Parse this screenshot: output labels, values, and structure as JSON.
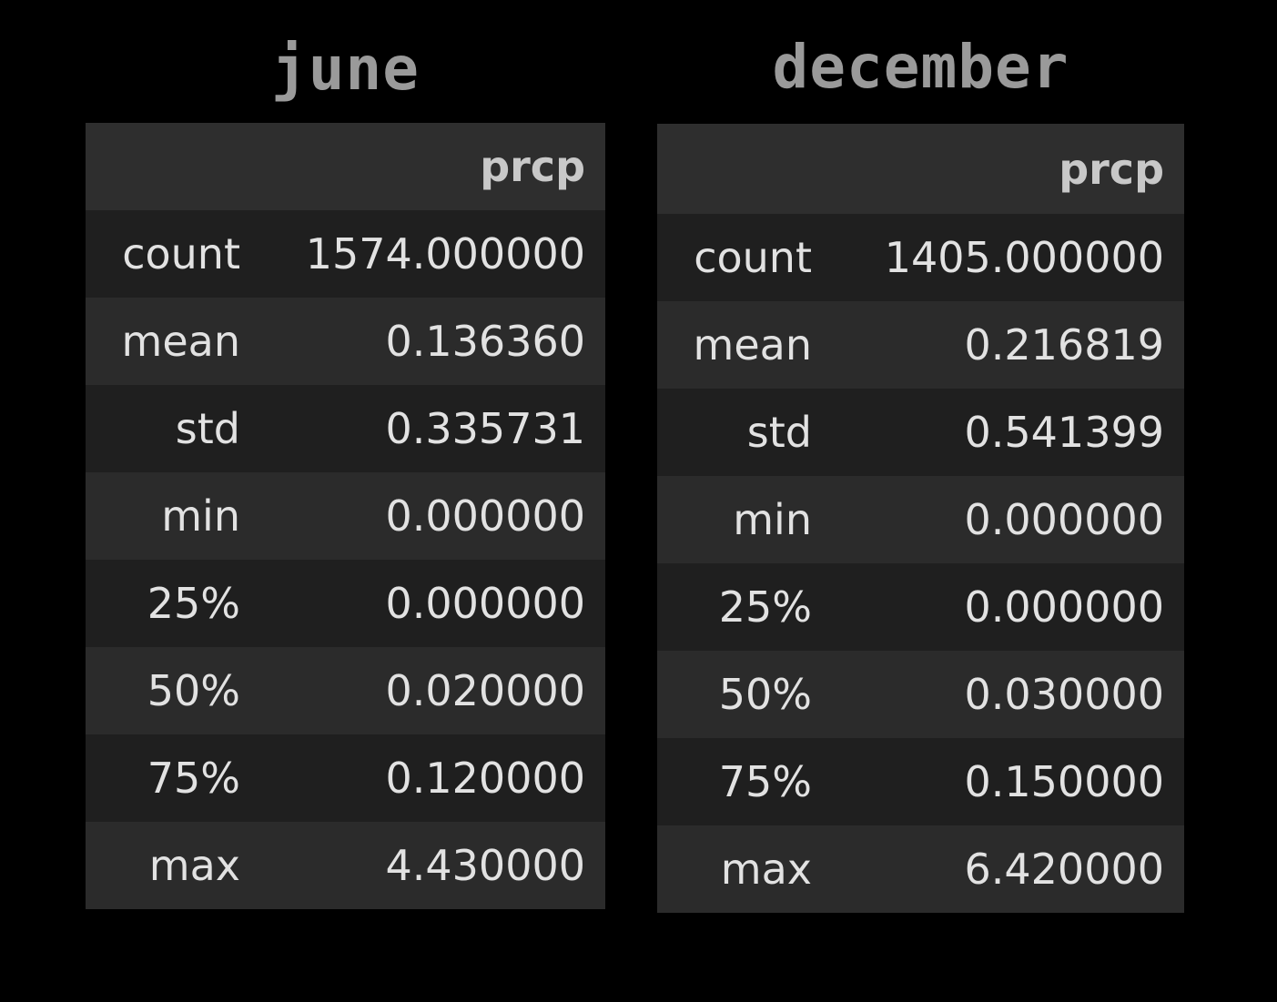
{
  "tables": [
    {
      "title": "june",
      "column_header": "prcp",
      "rows": [
        {
          "label": "count",
          "value": "1574.000000"
        },
        {
          "label": "mean",
          "value": "0.136360"
        },
        {
          "label": "std",
          "value": "0.335731"
        },
        {
          "label": "min",
          "value": "0.000000"
        },
        {
          "label": "25%",
          "value": "0.000000"
        },
        {
          "label": "50%",
          "value": "0.020000"
        },
        {
          "label": "75%",
          "value": "0.120000"
        },
        {
          "label": "max",
          "value": "4.430000"
        }
      ]
    },
    {
      "title": "december",
      "column_header": "prcp",
      "rows": [
        {
          "label": "count",
          "value": "1405.000000"
        },
        {
          "label": "mean",
          "value": "0.216819"
        },
        {
          "label": "std",
          "value": "0.541399"
        },
        {
          "label": "min",
          "value": "0.000000"
        },
        {
          "label": "25%",
          "value": "0.000000"
        },
        {
          "label": "50%",
          "value": "0.030000"
        },
        {
          "label": "75%",
          "value": "0.150000"
        },
        {
          "label": "max",
          "value": "6.420000"
        }
      ]
    }
  ]
}
